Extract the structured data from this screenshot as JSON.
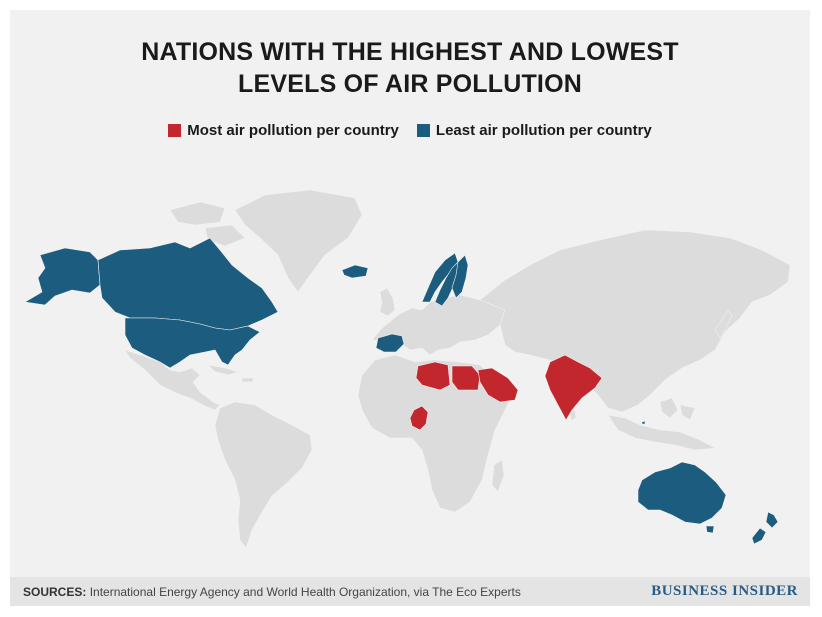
{
  "title_line1": "NATIONS WITH THE HIGHEST AND LOWEST",
  "title_line2": "LEVELS OF AIR POLLUTION",
  "legend": {
    "most": {
      "label": "Most air pollution per country",
      "color": "#c1272d"
    },
    "least": {
      "label": "Least air pollution per country",
      "color": "#1c5d7f"
    }
  },
  "land_color": "#dcdcdc",
  "footer": {
    "sources_label": "SOURCES:",
    "sources_text": "International Energy Agency and World Health Organization, via The Eco Experts",
    "brand": "BUSINESS INSIDER"
  }
}
